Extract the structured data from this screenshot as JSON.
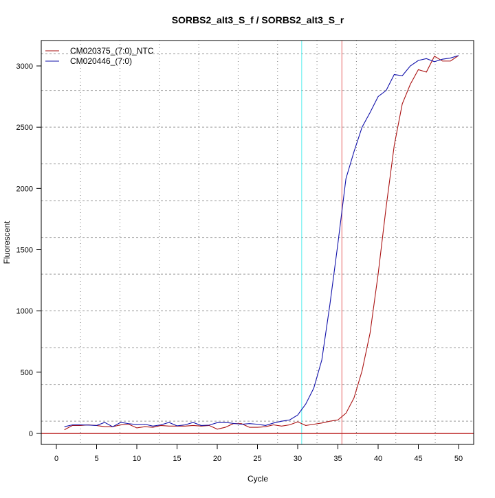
{
  "chart_data": {
    "type": "line",
    "title": "SORBS2_alt3_S_f / SORBS2_alt3_S_r",
    "xlabel": "Cycle",
    "ylabel": "Fluorescent",
    "xlim": [
      -2,
      52
    ],
    "ylim": [
      -90,
      3230
    ],
    "xticks": [
      0,
      5,
      10,
      15,
      20,
      25,
      30,
      35,
      40,
      45,
      50
    ],
    "yticks": [
      0,
      500,
      1000,
      1500,
      2000,
      2500,
      3000
    ],
    "grid": true,
    "legend_position": "top-left",
    "x": [
      1,
      2,
      3,
      4,
      5,
      6,
      7,
      8,
      9,
      10,
      11,
      12,
      13,
      14,
      15,
      16,
      17,
      18,
      19,
      20,
      21,
      22,
      23,
      24,
      25,
      26,
      27,
      28,
      29,
      30,
      31,
      32,
      33,
      34,
      35,
      36,
      37,
      38,
      39,
      40,
      41,
      42,
      43,
      44,
      45,
      46,
      47,
      48,
      49,
      50
    ],
    "series": [
      {
        "name": "CM020375_(7:0)_NTC",
        "color": "#aa1111",
        "values": [
          30,
          65,
          65,
          70,
          65,
          55,
          55,
          70,
          75,
          45,
          55,
          50,
          65,
          60,
          60,
          60,
          65,
          60,
          65,
          35,
          50,
          80,
          80,
          50,
          50,
          55,
          70,
          60,
          70,
          95,
          65,
          75,
          85,
          100,
          110,
          165,
          290,
          510,
          820,
          1300,
          1850,
          2350,
          2690,
          2850,
          2970,
          2950,
          3080,
          3040,
          3040,
          3085
        ]
      },
      {
        "name": "CM020446_(7:0)",
        "color": "#1111aa",
        "values": [
          55,
          70,
          70,
          68,
          65,
          90,
          55,
          90,
          80,
          72,
          75,
          60,
          70,
          90,
          62,
          70,
          90,
          65,
          68,
          88,
          90,
          82,
          75,
          80,
          75,
          65,
          85,
          100,
          110,
          150,
          240,
          370,
          600,
          1050,
          1550,
          2080,
          2300,
          2500,
          2620,
          2750,
          2800,
          2930,
          2920,
          3000,
          3045,
          3060,
          3035,
          3055,
          3065,
          3085
        ]
      }
    ],
    "reference_lines": {
      "threshold_y": 0,
      "threshold_color": "#bb2222",
      "vline_cycle_cyan": 30.5,
      "vline_cyan_color": "#55eeee",
      "vline_cycle_red": 35.5,
      "vline_red_color": "#ee9999"
    }
  }
}
